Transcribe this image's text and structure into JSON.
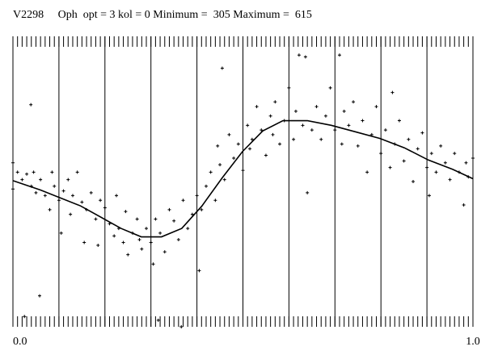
{
  "chart_data": {
    "type": "scatter",
    "title": "V2298     Oph  opt = 3 kol = 0 Minimum =  305 Maximum =  615",
    "xlim": [
      0,
      1
    ],
    "ylim": [
      305,
      615
    ],
    "xticks": [
      {
        "value": 0,
        "label": "0.0"
      },
      {
        "value": 1,
        "label": "1.0"
      }
    ],
    "grid_x": [
      0.1,
      0.2,
      0.3,
      0.4,
      0.5,
      0.6,
      0.7,
      0.8,
      0.9
    ],
    "minor_tick_step": 0.01,
    "color": "#000000",
    "x": [
      0.0,
      0.0,
      0.01,
      0.02,
      0.025,
      0.03,
      0.039,
      0.04,
      0.045,
      0.05,
      0.058,
      0.06,
      0.07,
      0.08,
      0.085,
      0.09,
      0.1,
      0.105,
      0.11,
      0.12,
      0.125,
      0.13,
      0.14,
      0.15,
      0.155,
      0.16,
      0.17,
      0.18,
      0.185,
      0.19,
      0.2,
      0.21,
      0.22,
      0.225,
      0.23,
      0.24,
      0.245,
      0.25,
      0.26,
      0.27,
      0.275,
      0.28,
      0.29,
      0.3,
      0.305,
      0.31,
      0.316,
      0.32,
      0.33,
      0.34,
      0.35,
      0.36,
      0.366,
      0.37,
      0.38,
      0.39,
      0.4,
      0.405,
      0.41,
      0.42,
      0.43,
      0.44,
      0.445,
      0.45,
      0.455,
      0.46,
      0.47,
      0.48,
      0.49,
      0.5,
      0.51,
      0.515,
      0.52,
      0.53,
      0.54,
      0.55,
      0.56,
      0.565,
      0.57,
      0.58,
      0.59,
      0.6,
      0.61,
      0.615,
      0.622,
      0.63,
      0.636,
      0.64,
      0.65,
      0.66,
      0.67,
      0.68,
      0.69,
      0.7,
      0.71,
      0.715,
      0.72,
      0.73,
      0.74,
      0.75,
      0.76,
      0.77,
      0.78,
      0.79,
      0.8,
      0.81,
      0.82,
      0.825,
      0.83,
      0.84,
      0.85,
      0.86,
      0.87,
      0.88,
      0.89,
      0.9,
      0.905,
      0.91,
      0.92,
      0.93,
      0.94,
      0.95,
      0.96,
      0.97,
      0.98,
      0.985,
      0.99,
      1.0
    ],
    "y": [
      480,
      452,
      470,
      462,
      316,
      468,
      542,
      455,
      470,
      448,
      338,
      462,
      445,
      430,
      470,
      455,
      440,
      405,
      450,
      462,
      425,
      445,
      470,
      438,
      395,
      430,
      448,
      420,
      392,
      440,
      432,
      415,
      402,
      445,
      410,
      395,
      428,
      382,
      405,
      420,
      398,
      388,
      410,
      395,
      372,
      420,
      312,
      405,
      385,
      430,
      418,
      398,
      305,
      440,
      410,
      425,
      445,
      365,
      430,
      455,
      470,
      440,
      498,
      478,
      581,
      462,
      510,
      485,
      500,
      472,
      520,
      495,
      505,
      540,
      515,
      488,
      530,
      510,
      545,
      500,
      525,
      560,
      505,
      535,
      595,
      520,
      593,
      448,
      515,
      540,
      505,
      530,
      560,
      515,
      595,
      500,
      535,
      520,
      545,
      498,
      525,
      470,
      510,
      540,
      490,
      515,
      475,
      555,
      500,
      525,
      482,
      505,
      460,
      495,
      512,
      475,
      445,
      490,
      470,
      498,
      480,
      462,
      490,
      470,
      435,
      480,
      465,
      485
    ],
    "fit": {
      "x": [
        0,
        0.06,
        0.147,
        0.235,
        0.279,
        0.323,
        0.367,
        0.411,
        0.455,
        0.499,
        0.543,
        0.587,
        0.64,
        0.692,
        0.745,
        0.798,
        0.851,
        0.903,
        0.956,
        1.0
      ],
      "y": [
        461,
        451,
        434,
        410,
        401,
        401,
        410,
        434,
        464,
        492,
        514,
        525,
        525,
        520,
        513,
        506,
        496,
        483,
        473,
        463
      ],
      "color": "#000000"
    }
  }
}
